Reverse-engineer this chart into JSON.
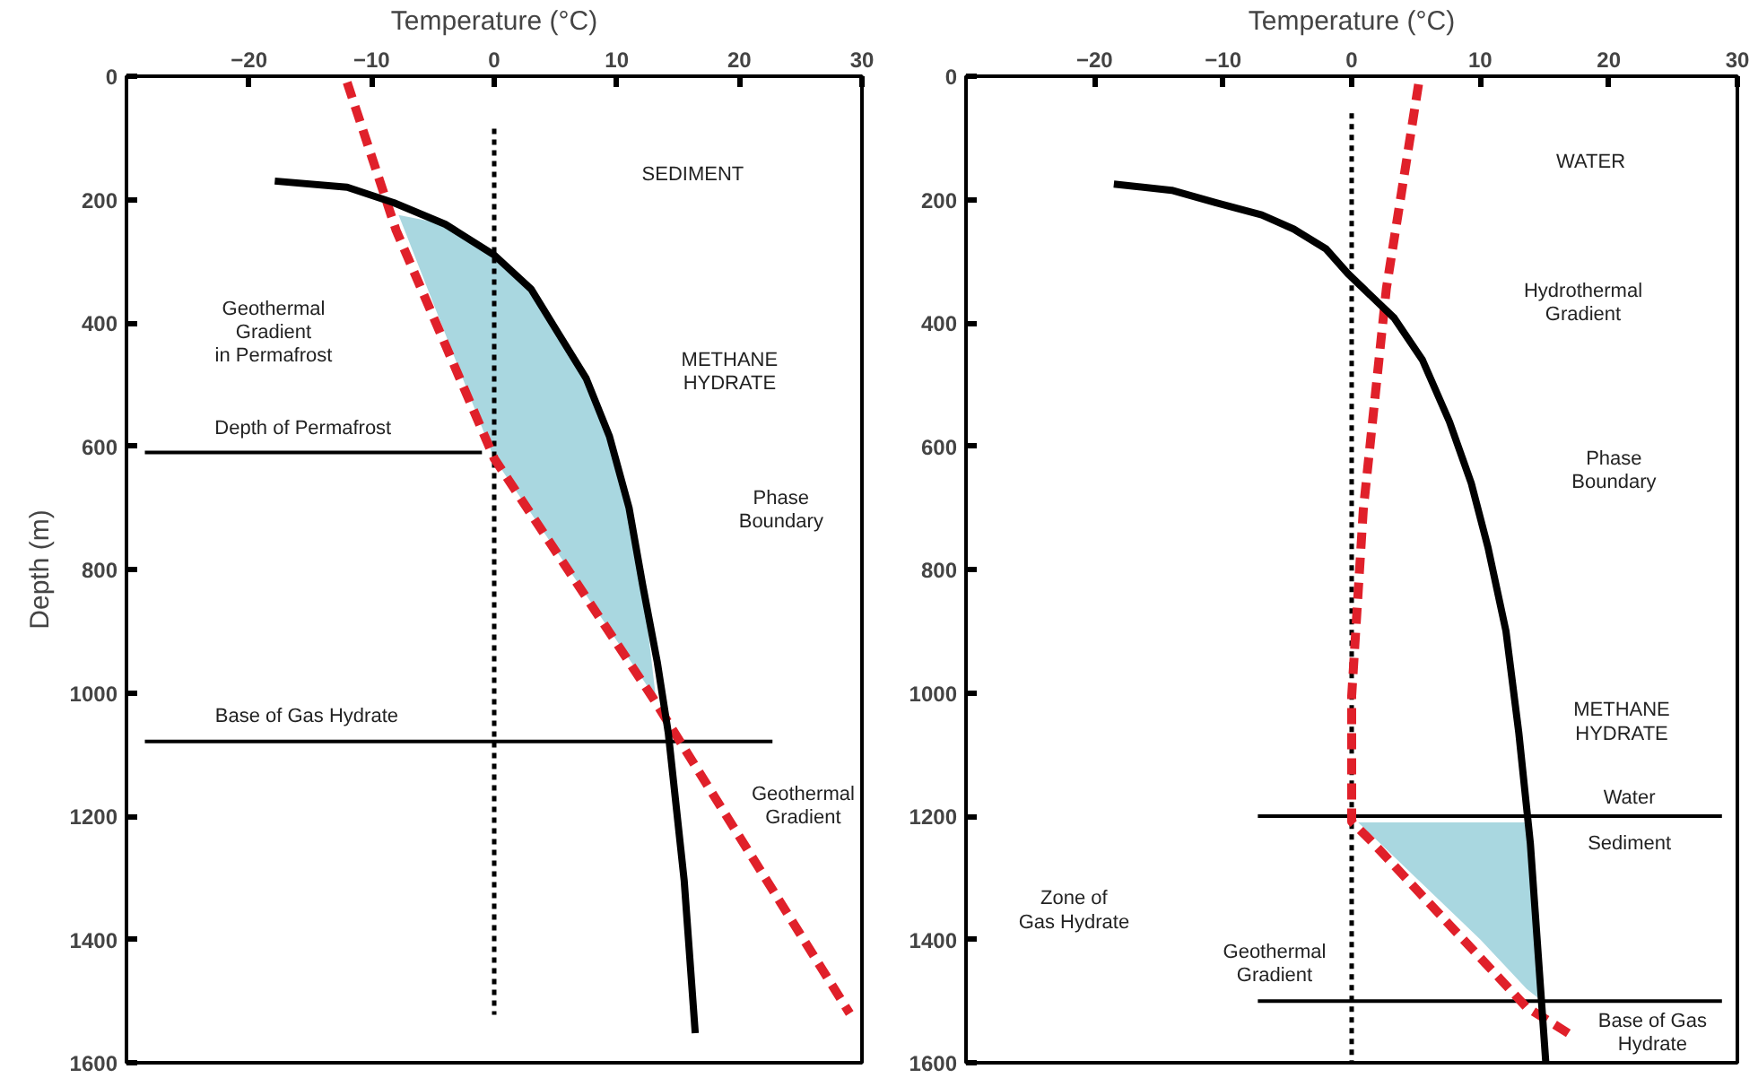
{
  "chart_data": [
    {
      "type": "line",
      "xlabel": "Temperature (°C)",
      "ylabel": "Depth (m)",
      "xlim": [
        -30,
        30
      ],
      "ylim": [
        1600,
        0
      ],
      "xticks": [
        -20,
        -10,
        0,
        10,
        20,
        30
      ],
      "yticks": [
        0,
        200,
        400,
        600,
        800,
        1000,
        1200,
        1400,
        1600
      ],
      "grid": false,
      "series": [
        {
          "type": "area",
          "color": "#a9d7e0",
          "x": [
            -7.8,
            -4,
            0,
            3,
            5.2,
            7.5,
            9.4,
            11,
            12.1,
            13.2,
            0
          ],
          "values": [
            225,
            240,
            290,
            345,
            416,
            490,
            584,
            700,
            824,
            1010,
            620
          ]
        },
        {
          "color": "#000000",
          "line_style": "dotted",
          "x": [
            0,
            0
          ],
          "values": [
            85,
            1522
          ]
        },
        {
          "color": "#000000",
          "line_style": "solid",
          "x": [
            -28.5,
            -1
          ],
          "values": [
            610,
            610
          ]
        },
        {
          "color": "#000000",
          "line_style": "solid",
          "x": [
            -28.5,
            22.7
          ],
          "values": [
            1079,
            1079
          ]
        },
        {
          "color": "#e0202a",
          "line_style": "dashed",
          "x": [
            -12,
            -8,
            0,
            13,
            29
          ],
          "values": [
            10,
            250,
            620,
            1010,
            1520
          ]
        },
        {
          "color": "#000000",
          "line_style": "solid",
          "x": [
            -17.9,
            -12,
            -8.2,
            -4,
            0,
            3,
            5.2,
            7.5,
            9.4,
            11,
            12.1,
            13.3,
            14.2,
            15.5,
            16.4
          ],
          "values": [
            170,
            180,
            205,
            240,
            290,
            345,
            416,
            490,
            584,
            700,
            824,
            950,
            1065,
            1305,
            1552
          ]
        }
      ],
      "annotations": [
        "SEDIMENT",
        "Geothermal\nGradient\nin Permafrost",
        "METHANE\nHYDRATE",
        "Depth of Permafrost",
        "Phase\nBoundary",
        "Base of Gas Hydrate",
        "Geothermal\nGradient"
      ]
    },
    {
      "type": "line",
      "xlabel": "Temperature (°C)",
      "xlim": [
        -30,
        30
      ],
      "ylim": [
        1600,
        0
      ],
      "xticks": [
        -20,
        -10,
        0,
        10,
        20,
        30
      ],
      "yticks": [
        0,
        200,
        400,
        600,
        800,
        1000,
        1200,
        1400,
        1600
      ],
      "grid": false,
      "series": [
        {
          "type": "area",
          "color": "#a9d7e0",
          "x": [
            0.5,
            5,
            10,
            13.6,
            14.8,
            13.9
          ],
          "values": [
            1210,
            1300,
            1400,
            1480,
            1500,
            1210
          ]
        },
        {
          "color": "#000000",
          "line_style": "dotted",
          "x": [
            0,
            0
          ],
          "values": [
            60,
            1600
          ]
        },
        {
          "color": "#000000",
          "line_style": "solid",
          "x": [
            -7.3,
            28.8
          ],
          "values": [
            1200,
            1200
          ]
        },
        {
          "color": "#000000",
          "line_style": "solid",
          "x": [
            -7.3,
            28.8
          ],
          "values": [
            1500,
            1500
          ]
        },
        {
          "color": "#e0202a",
          "line_style": "dashed",
          "x": [
            5.2,
            2.7,
            0.9,
            0,
            0,
            1.5,
            13.6,
            17.3
          ],
          "values": [
            13,
            344,
            704,
            1005,
            1209,
            1240,
            1510,
            1558
          ]
        },
        {
          "color": "#000000",
          "line_style": "solid",
          "x": [
            -18.5,
            -14,
            -10.6,
            -7,
            -4.5,
            -2,
            -0.3,
            3.3,
            5.5,
            7.6,
            9.3,
            10.6,
            12,
            13,
            13.9,
            15.1
          ],
          "values": [
            175,
            185,
            205,
            225,
            248,
            280,
            320,
            392,
            460,
            560,
            660,
            764,
            900,
            1065,
            1245,
            1600
          ]
        }
      ],
      "annotations": [
        "WATER",
        "Hydrothermal\nGradient",
        "Phase\nBoundary",
        "METHANE\nHYDRATE",
        "Water",
        "Sediment",
        "Zone of\nGas Hydrate",
        "Geothermal\nGradient",
        "Base of Gas\nHydrate"
      ]
    }
  ]
}
